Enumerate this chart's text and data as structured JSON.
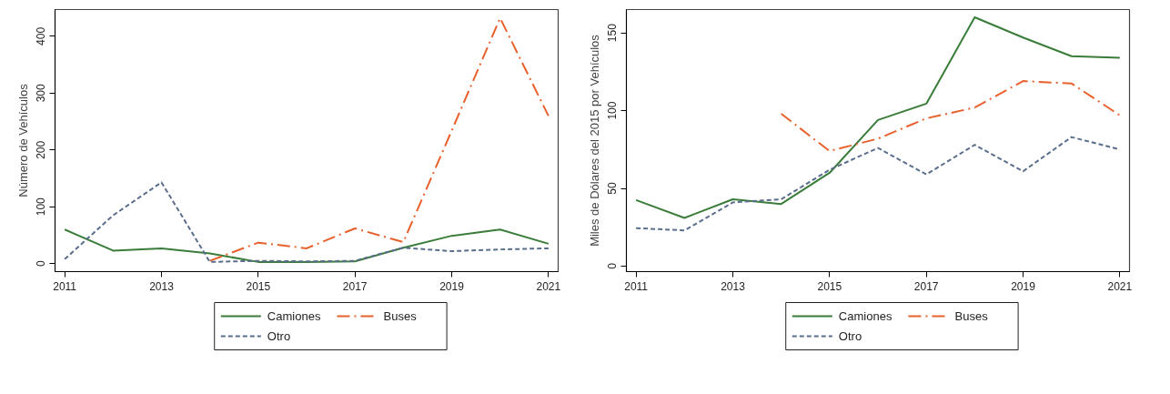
{
  "chart_data": [
    {
      "type": "line",
      "ylabel": "Número de Vehículos",
      "x": [
        2011,
        2012,
        2013,
        2014,
        2015,
        2016,
        2017,
        2018,
        2019,
        2020,
        2021
      ],
      "xlim": [
        2010.8,
        2021.2
      ],
      "xticks": [
        2011,
        2013,
        2015,
        2017,
        2019,
        2021
      ],
      "ylim": [
        -14,
        447
      ],
      "yticks": [
        0,
        100,
        200,
        300,
        400
      ],
      "grid": false,
      "legend": "bottom",
      "series": [
        {
          "name": "Camiones",
          "color": "#3a7d3a",
          "line_style": "solid",
          "values": [
            60,
            23,
            27,
            18,
            3,
            3,
            4,
            28,
            49,
            60,
            35
          ]
        },
        {
          "name": "Buses",
          "color": "#e8602c",
          "line_style": "dashdot",
          "values": [
            null,
            null,
            null,
            5,
            37,
            27,
            62,
            38,
            234,
            432,
            260
          ]
        },
        {
          "name": "Otro",
          "color": "#5a6e8c",
          "line_style": "dashed",
          "values": [
            8,
            85,
            143,
            3,
            5,
            4,
            5,
            28,
            22,
            25,
            27
          ]
        }
      ]
    },
    {
      "type": "line",
      "ylabel": "Miles de Dólares del 2015 por Vehículos",
      "x": [
        2011,
        2012,
        2013,
        2014,
        2015,
        2016,
        2017,
        2018,
        2019,
        2020,
        2021
      ],
      "xlim": [
        2010.8,
        2021.2
      ],
      "xticks": [
        2011,
        2013,
        2015,
        2017,
        2019,
        2021
      ],
      "ylim": [
        -3.5,
        165
      ],
      "yticks": [
        0,
        50,
        100,
        150
      ],
      "grid": false,
      "legend": "bottom",
      "series": [
        {
          "name": "Camiones",
          "color": "#3a7d3a",
          "line_style": "solid",
          "values": [
            42.5,
            31,
            43,
            40,
            60,
            94,
            104.5,
            160,
            147,
            135,
            134
          ]
        },
        {
          "name": "Buses",
          "color": "#e8602c",
          "line_style": "dashdot",
          "values": [
            null,
            null,
            null,
            98,
            74,
            82,
            95,
            102,
            119,
            117.5,
            97
          ]
        },
        {
          "name": "Otro",
          "color": "#5a6e8c",
          "line_style": "dashed",
          "values": [
            24.5,
            23,
            41,
            43,
            62,
            76,
            59,
            78,
            61,
            83,
            75
          ]
        }
      ]
    }
  ]
}
